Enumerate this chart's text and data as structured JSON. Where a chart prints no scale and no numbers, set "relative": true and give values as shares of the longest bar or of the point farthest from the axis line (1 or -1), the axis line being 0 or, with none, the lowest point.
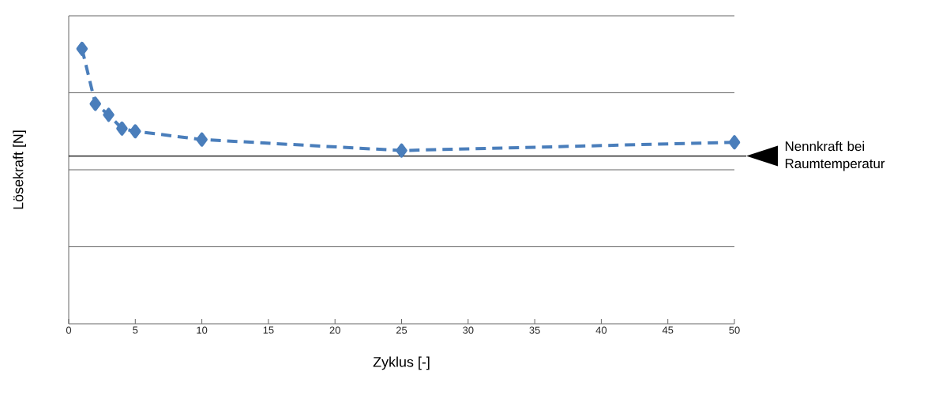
{
  "chart_data": {
    "type": "line",
    "relative": true,
    "xlabel": "Zyklus [-]",
    "ylabel": "Lösekraft [N]",
    "x": [
      1,
      2,
      3,
      4,
      5,
      10,
      25,
      50
    ],
    "series": [
      {
        "color": "#4a7ebb",
        "values": [
          1,
          0.8,
          0.76,
          0.71,
          0.7,
          0.67,
          0.63,
          0.66
        ]
      }
    ],
    "xlim": [
      0,
      50
    ],
    "xticks": [
      0,
      5,
      10,
      15,
      20,
      25,
      30,
      35,
      40,
      45,
      50
    ],
    "ref_lines": [
      {
        "axis": "y",
        "value": 0.61,
        "label": "Nennkraft bei Raumtemperatur",
        "color": "#000000"
      }
    ],
    "grid": "y",
    "marker": "diamond",
    "line_style": "dashed"
  }
}
